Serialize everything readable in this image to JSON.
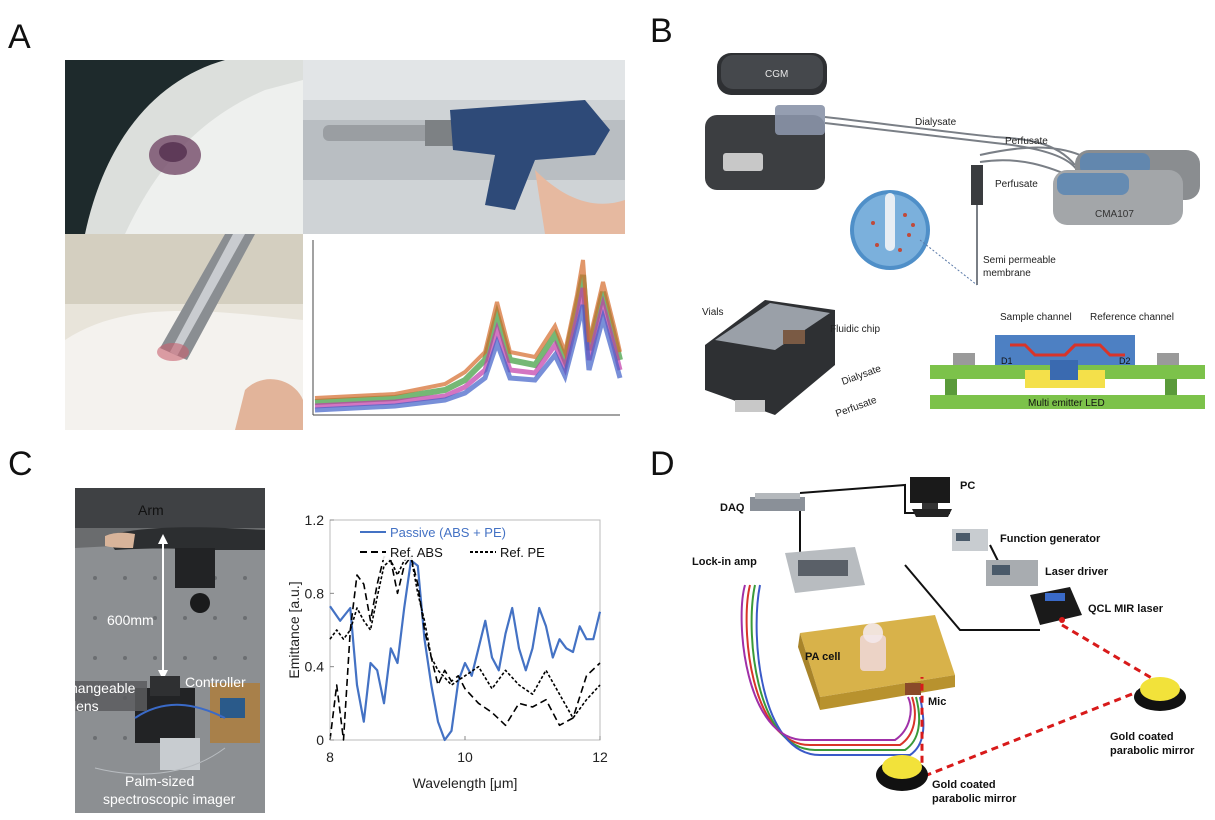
{
  "panels": {
    "a": {
      "letter": "A"
    },
    "b": {
      "letter": "B",
      "labels": {
        "cgm": "CGM",
        "dialysate": "Dialysate",
        "perfusate_1": "Perfusate",
        "perfusate_2": "Perfusate",
        "pump": "CMA107",
        "membrane_1": "Semi permeable",
        "membrane_2": "membrane",
        "vials": "Vials",
        "fluidic_chip": "Fluidic chip",
        "sample_channel": "Sample channel",
        "reference_channel": "Reference channel",
        "d1": "D1",
        "d2": "D2",
        "led": "Multi emitter LED",
        "dialysate_chip": "Dialysate",
        "perfusate_chip": "Perfusate"
      }
    },
    "c": {
      "letter": "C",
      "photo_labels": {
        "arm": "Arm",
        "distance": "600mm",
        "lens_1": "Interchangeable",
        "lens_2": "lens",
        "controller": "Controller",
        "imager_1": "Palm-sized",
        "imager_2": "spectroscopic imager"
      }
    },
    "d": {
      "letter": "D",
      "labels": {
        "pc": "PC",
        "daq": "DAQ",
        "function_generator": "Function generator",
        "lockin": "Lock-in amp",
        "laser_driver": "Laser driver",
        "qcl": "QCL MIR laser",
        "pa_cell": "PA cell",
        "mic": "Mic",
        "mirror_right_1": "Gold coated",
        "mirror_right_2": "parabolic mirror",
        "mirror_left_1": "Gold coated",
        "mirror_left_2": "parabolic mirror"
      }
    }
  },
  "chart_data": {
    "type": "line",
    "xlabel": "Wavelength [μm]",
    "ylabel": "Emittance [a.u.]",
    "xlim": [
      8,
      12
    ],
    "ylim": [
      0,
      1.2
    ],
    "xticks": [
      "8",
      "10",
      "12"
    ],
    "yticks": [
      "0",
      "0.4",
      "0.8",
      "1.2"
    ],
    "legend_position": "top",
    "series": [
      {
        "name": "Passive (ABS + PE)",
        "color": "#4472c4",
        "style": "solid",
        "x": [
          8.0,
          8.15,
          8.3,
          8.4,
          8.5,
          8.6,
          8.7,
          8.8,
          8.9,
          9.0,
          9.1,
          9.2,
          9.3,
          9.4,
          9.5,
          9.6,
          9.7,
          9.8,
          9.9,
          10.0,
          10.1,
          10.2,
          10.3,
          10.4,
          10.5,
          10.6,
          10.7,
          10.8,
          10.9,
          11.0,
          11.1,
          11.2,
          11.3,
          11.4,
          11.5,
          11.6,
          11.7,
          11.8,
          11.9,
          12.0
        ],
        "y": [
          0.73,
          0.65,
          0.72,
          0.3,
          0.1,
          0.42,
          0.38,
          0.2,
          0.5,
          0.42,
          0.72,
          0.98,
          0.95,
          0.55,
          0.3,
          0.1,
          0.0,
          0.05,
          0.32,
          0.42,
          0.35,
          0.5,
          0.65,
          0.45,
          0.38,
          0.58,
          0.72,
          0.5,
          0.38,
          0.5,
          0.72,
          0.62,
          0.45,
          0.55,
          0.5,
          0.48,
          0.62,
          0.55,
          0.55,
          0.7
        ]
      },
      {
        "name": "Ref. ABS",
        "color": "#000000",
        "style": "dashed",
        "x": [
          8.0,
          8.1,
          8.2,
          8.3,
          8.4,
          8.5,
          8.6,
          8.7,
          8.8,
          8.9,
          9.0,
          9.1,
          9.2,
          9.3,
          9.4,
          9.5,
          9.6,
          9.7,
          9.8,
          9.9,
          10.0,
          10.2,
          10.4,
          10.6,
          10.8,
          11.0,
          11.2,
          11.4,
          11.6,
          11.8,
          12.0
        ],
        "y": [
          0.0,
          0.3,
          0.0,
          0.6,
          0.9,
          0.85,
          0.65,
          0.85,
          1.0,
          0.98,
          0.8,
          0.95,
          1.0,
          0.85,
          0.6,
          0.45,
          0.3,
          0.38,
          0.32,
          0.35,
          0.28,
          0.2,
          0.15,
          0.08,
          0.2,
          0.18,
          0.22,
          0.08,
          0.12,
          0.35,
          0.42
        ]
      },
      {
        "name": "Ref. PE",
        "color": "#000000",
        "style": "dashed",
        "x": [
          8.0,
          8.1,
          8.2,
          8.3,
          8.4,
          8.5,
          8.6,
          8.7,
          8.8,
          8.9,
          9.0,
          9.1,
          9.2,
          9.3,
          9.4,
          9.5,
          9.6,
          9.8,
          10.0,
          10.2,
          10.4,
          10.6,
          10.8,
          11.0,
          11.2,
          11.4,
          11.6,
          11.8,
          12.0
        ],
        "y": [
          0.55,
          0.6,
          0.55,
          0.6,
          0.72,
          0.65,
          0.6,
          0.78,
          0.95,
          0.98,
          0.9,
          0.98,
          1.0,
          0.8,
          0.65,
          0.45,
          0.38,
          0.3,
          0.35,
          0.4,
          0.28,
          0.38,
          0.3,
          0.25,
          0.38,
          0.25,
          0.12,
          0.22,
          0.3
        ]
      }
    ]
  }
}
